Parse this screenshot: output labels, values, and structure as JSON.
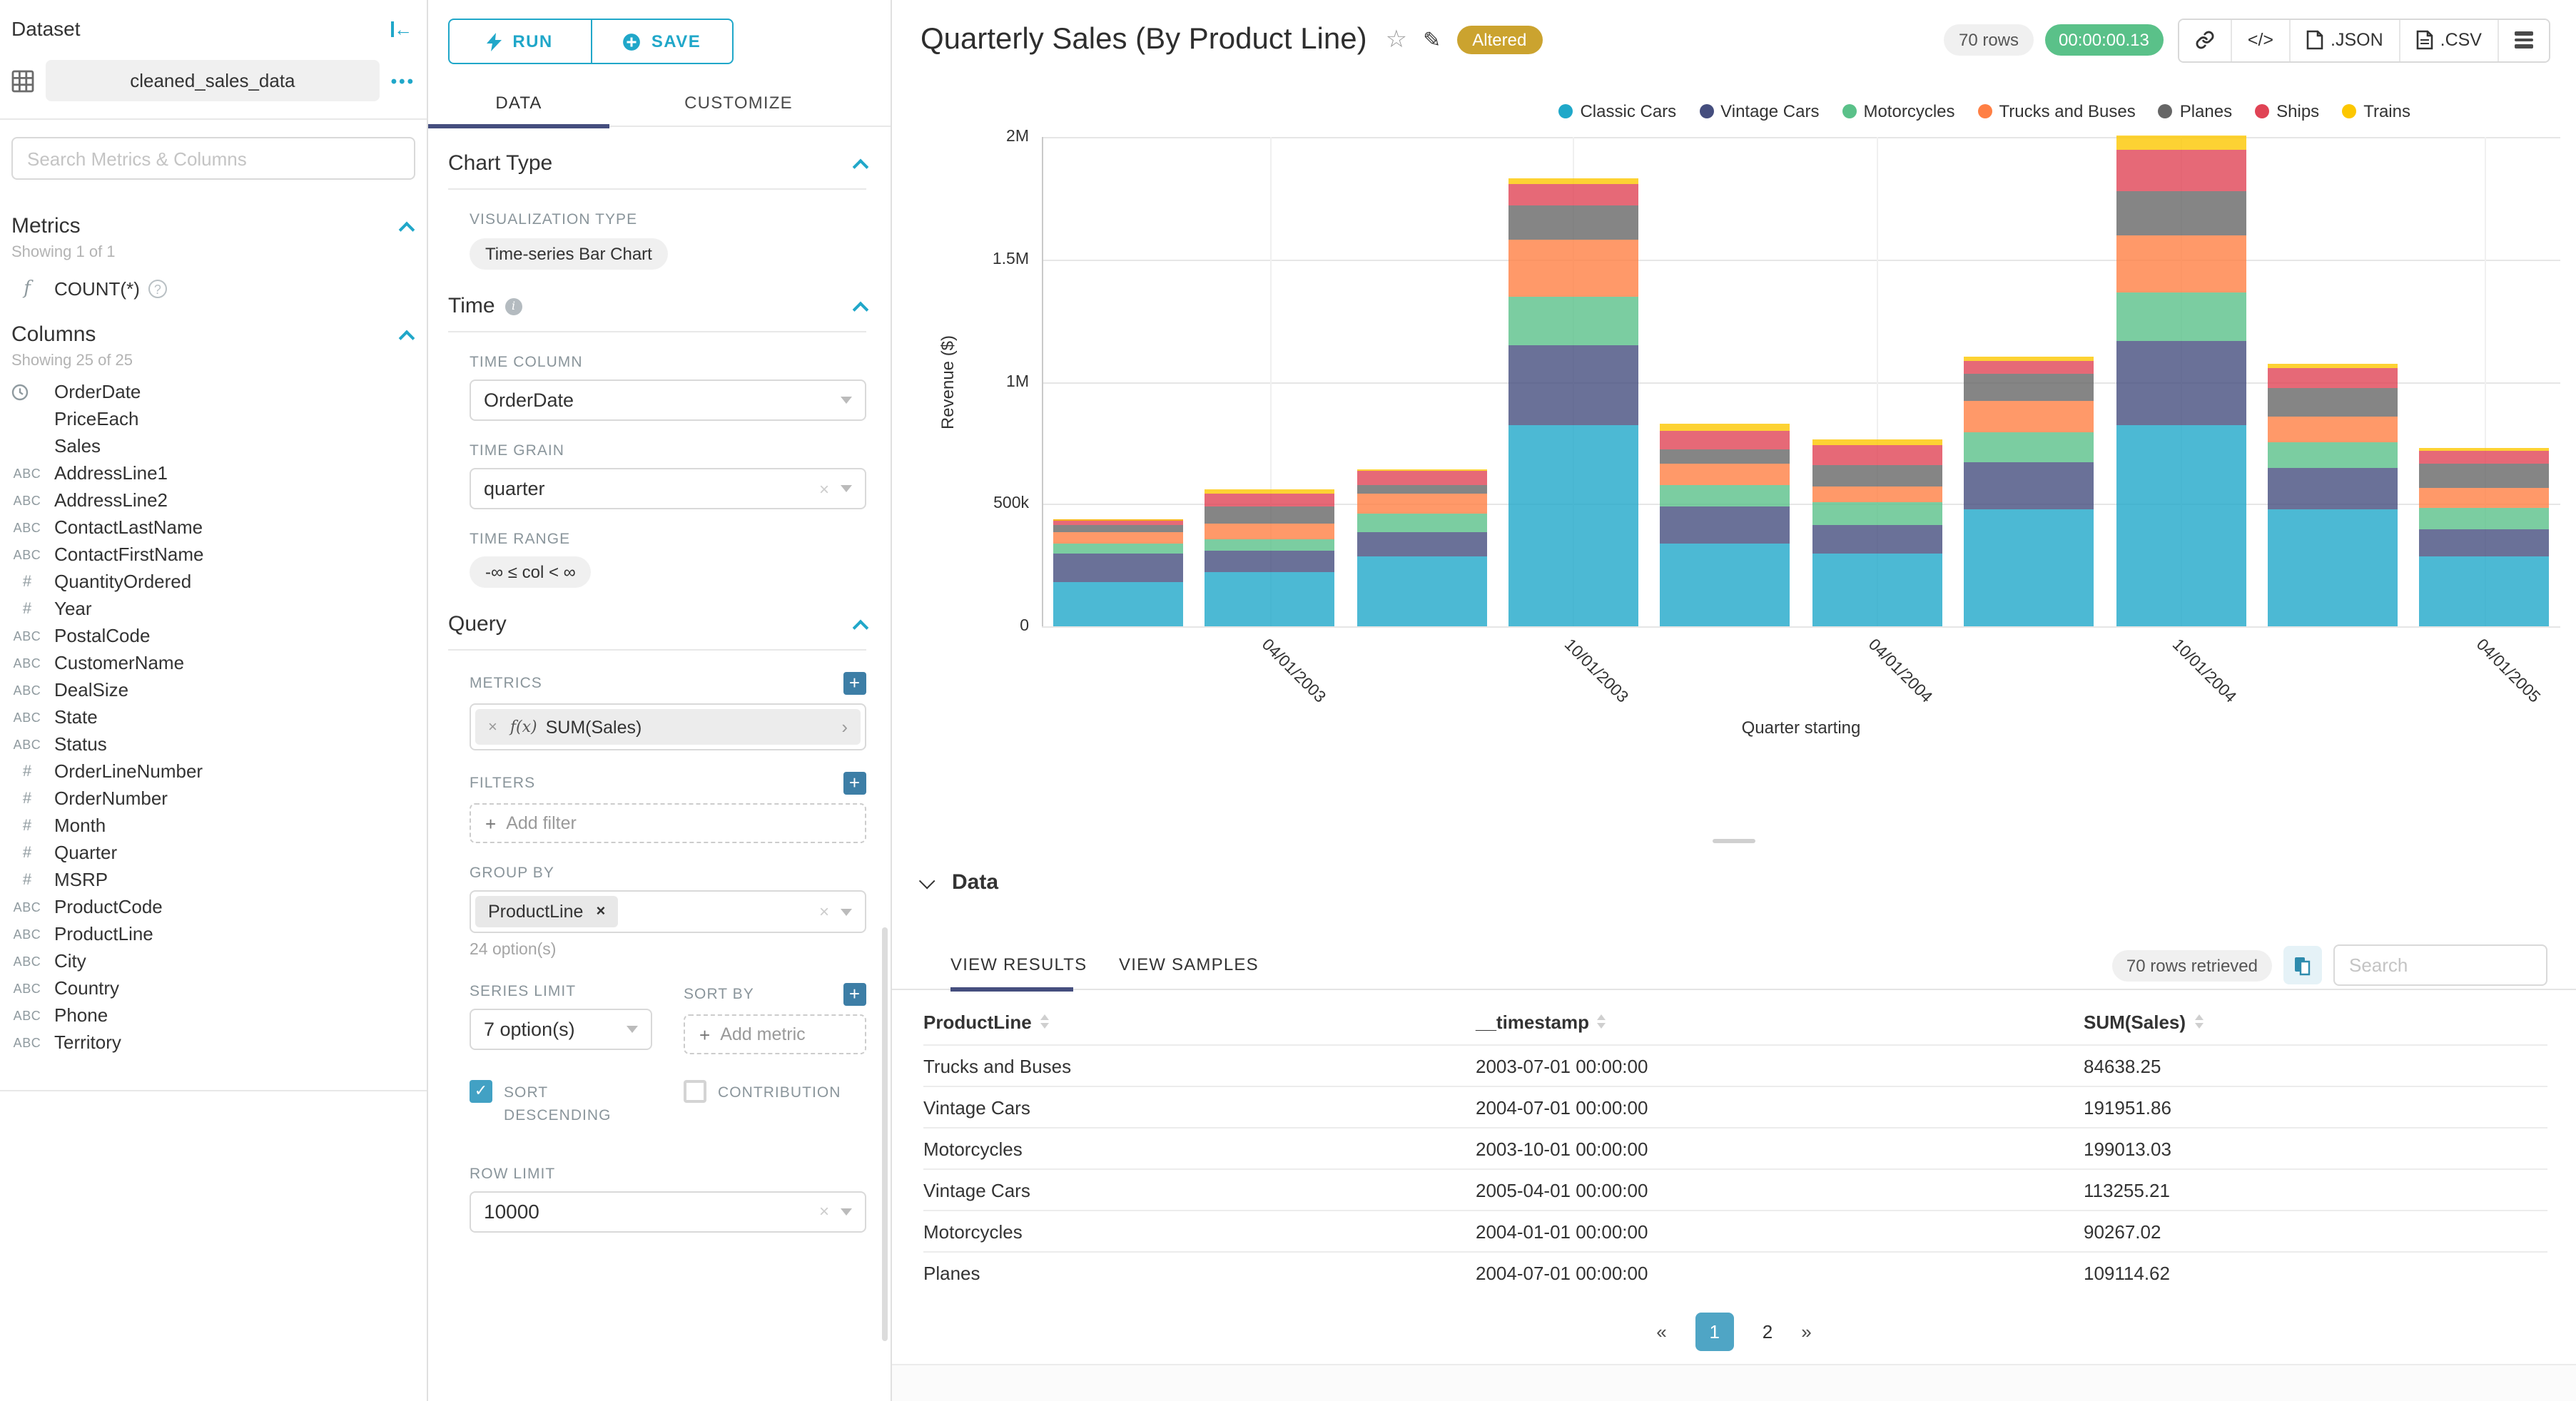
{
  "colors": {
    "primary": "#20A7C9",
    "tab_underline": "#454E7E",
    "timer_green": "#5AC189",
    "altered_gold": "#CBA32F",
    "add_button": "#3D7EA6",
    "pagination_active": "#4FA5C5"
  },
  "dataset_panel": {
    "title": "Dataset",
    "dataset_name": "cleaned_sales_data",
    "search_placeholder": "Search Metrics & Columns",
    "metrics_section": {
      "title": "Metrics",
      "showing": "Showing 1 of 1",
      "metric_label": "COUNT(*)"
    },
    "columns_section": {
      "title": "Columns",
      "showing": "Showing 25 of 25",
      "items": [
        {
          "type": "time",
          "label": "OrderDate"
        },
        {
          "type": "",
          "label": "PriceEach"
        },
        {
          "type": "",
          "label": "Sales"
        },
        {
          "type": "abc",
          "label": "AddressLine1"
        },
        {
          "type": "abc",
          "label": "AddressLine2"
        },
        {
          "type": "abc",
          "label": "ContactLastName"
        },
        {
          "type": "abc",
          "label": "ContactFirstName"
        },
        {
          "type": "num",
          "label": "QuantityOrdered"
        },
        {
          "type": "num",
          "label": "Year"
        },
        {
          "type": "abc",
          "label": "PostalCode"
        },
        {
          "type": "abc",
          "label": "CustomerName"
        },
        {
          "type": "abc",
          "label": "DealSize"
        },
        {
          "type": "abc",
          "label": "State"
        },
        {
          "type": "abc",
          "label": "Status"
        },
        {
          "type": "num",
          "label": "OrderLineNumber"
        },
        {
          "type": "num",
          "label": "OrderNumber"
        },
        {
          "type": "num",
          "label": "Month"
        },
        {
          "type": "num",
          "label": "Quarter"
        },
        {
          "type": "num",
          "label": "MSRP"
        },
        {
          "type": "abc",
          "label": "ProductCode"
        },
        {
          "type": "abc",
          "label": "ProductLine"
        },
        {
          "type": "abc",
          "label": "City"
        },
        {
          "type": "abc",
          "label": "Country"
        },
        {
          "type": "abc",
          "label": "Phone"
        },
        {
          "type": "abc",
          "label": "Territory"
        }
      ]
    }
  },
  "control_panel": {
    "run_label": "RUN",
    "save_label": "SAVE",
    "tabs": {
      "data": "DATA",
      "customize": "CUSTOMIZE"
    },
    "chart_type": {
      "title": "Chart Type",
      "viz_label": "VISUALIZATION TYPE",
      "viz_value": "Time-series Bar Chart"
    },
    "time": {
      "title": "Time",
      "time_column_label": "TIME COLUMN",
      "time_column": "OrderDate",
      "time_grain_label": "TIME GRAIN",
      "time_grain": "quarter",
      "time_range_label": "TIME RANGE",
      "time_range": "-∞ ≤ col < ∞"
    },
    "query": {
      "title": "Query",
      "metrics_label": "METRICS",
      "metric_fx": "f(x)",
      "metric_chip": "SUM(Sales)",
      "filters_label": "FILTERS",
      "add_filter": "Add filter",
      "group_by_label": "GROUP BY",
      "group_by_chip": "ProductLine",
      "options_hint": "24 option(s)",
      "series_limit_label": "SERIES LIMIT",
      "series_limit": "7 option(s)",
      "sort_by_label": "SORT BY",
      "add_metric": "Add metric",
      "sort_descending_label": "SORT DESCENDING",
      "contribution_label": "CONTRIBUTION",
      "row_limit_label": "ROW LIMIT",
      "row_limit": "10000"
    }
  },
  "chart_header": {
    "title": "Quarterly Sales (By Product Line)",
    "altered_badge": "Altered",
    "rows_badge": "70 rows",
    "timer": "00:00:00.13",
    "code_button": "</>",
    "json_button": ".JSON",
    "csv_button": ".CSV"
  },
  "chart_data": {
    "type": "bar",
    "stacked": true,
    "title": "Quarterly Sales (By Product Line)",
    "xlabel": "Quarter starting",
    "ylabel": "Revenue ($)",
    "ylim": [
      0,
      2000000
    ],
    "grid": true,
    "legend_position": "top-right",
    "x": [
      "01/01/2003",
      "04/01/2003",
      "07/01/2003",
      "10/01/2003",
      "01/01/2004",
      "04/01/2004",
      "07/01/2004",
      "10/01/2004",
      "01/01/2005",
      "04/01/2005"
    ],
    "x_ticks": [
      {
        "index": 1,
        "label": "04/01/2003"
      },
      {
        "index": 3,
        "label": "10/01/2003"
      },
      {
        "index": 5,
        "label": "04/01/2004"
      },
      {
        "index": 7,
        "label": "10/01/2004"
      },
      {
        "index": 9,
        "label": "04/01/2005"
      }
    ],
    "y_ticks": [
      {
        "label": "0",
        "value": 0
      },
      {
        "label": "500k",
        "value": 500000
      },
      {
        "label": "1M",
        "value": 1000000
      },
      {
        "label": "1.5M",
        "value": 1500000
      },
      {
        "label": "2M",
        "value": 2000000
      }
    ],
    "series": [
      {
        "name": "Classic Cars",
        "color": "#1FA8C9",
        "values": [
          180000,
          220000,
          285000,
          820000,
          340000,
          295000,
          480000,
          820000,
          480000,
          285000
        ]
      },
      {
        "name": "Vintage Cars",
        "color": "#454E7E",
        "values": [
          120000,
          90000,
          100000,
          330000,
          150000,
          120000,
          191951.86,
          345000,
          170000,
          113255.21
        ]
      },
      {
        "name": "Motorcycles",
        "color": "#5AC189",
        "values": [
          40000,
          45000,
          75000,
          199013.03,
          90267.02,
          95000,
          120000,
          200000,
          105000,
          85000
        ]
      },
      {
        "name": "Trucks and Buses",
        "color": "#FF7F44",
        "values": [
          45000,
          65000,
          84638.25,
          230000,
          85000,
          60000,
          130000,
          235000,
          100000,
          80000
        ]
      },
      {
        "name": "Planes",
        "color": "#666666",
        "values": [
          30000,
          70000,
          30000,
          140000,
          60000,
          90000,
          109114.62,
          180000,
          120000,
          100000
        ]
      },
      {
        "name": "Ships",
        "color": "#E04355",
        "values": [
          20000,
          55000,
          60000,
          90000,
          75000,
          80000,
          55000,
          170000,
          80000,
          55000
        ]
      },
      {
        "name": "Trains",
        "color": "#FCC700",
        "values": [
          5000,
          15000,
          10000,
          25000,
          30000,
          25000,
          15000,
          55000,
          20000,
          10000
        ]
      }
    ]
  },
  "data_panel": {
    "title": "Data",
    "tab_results": "VIEW RESULTS",
    "tab_samples": "VIEW SAMPLES",
    "rows_retrieved": "70 rows retrieved",
    "search_placeholder": "Search",
    "columns": [
      "ProductLine",
      "__timestamp",
      "SUM(Sales)"
    ],
    "rows": [
      [
        "Trucks and Buses",
        "2003-07-01 00:00:00",
        "84638.25"
      ],
      [
        "Vintage Cars",
        "2004-07-01 00:00:00",
        "191951.86"
      ],
      [
        "Motorcycles",
        "2003-10-01 00:00:00",
        "199013.03"
      ],
      [
        "Vintage Cars",
        "2005-04-01 00:00:00",
        "113255.21"
      ],
      [
        "Motorcycles",
        "2004-01-01 00:00:00",
        "90267.02"
      ],
      [
        "Planes",
        "2004-07-01 00:00:00",
        "109114.62"
      ]
    ],
    "pagination": {
      "prev": "«",
      "pages": [
        "1",
        "2"
      ],
      "active": "1",
      "next": "»"
    }
  }
}
